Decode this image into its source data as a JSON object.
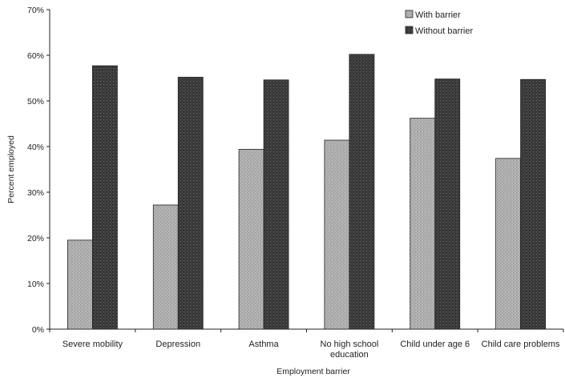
{
  "chart_data": {
    "type": "bar",
    "title": "",
    "xlabel": "Employment barrier",
    "ylabel": "Percent employed",
    "ylim": [
      0,
      70
    ],
    "yticks": [
      "0%",
      "10%",
      "20%",
      "30%",
      "40%",
      "50%",
      "60%",
      "70%"
    ],
    "categories": [
      [
        "Severe mobility"
      ],
      [
        "Depression"
      ],
      [
        "Asthma"
      ],
      [
        "No high school",
        "education"
      ],
      [
        "Child under age 6"
      ],
      [
        "Child care problems"
      ]
    ],
    "series": [
      {
        "name": "With barrier",
        "values": [
          19.5,
          27.2,
          39.4,
          41.4,
          46.2,
          37.4
        ],
        "color": "#a9a9a9",
        "pattern": "speckle-light"
      },
      {
        "name": "Without barrier",
        "values": [
          57.7,
          55.2,
          54.6,
          60.2,
          54.8,
          54.7
        ],
        "color": "#3c3c3c",
        "pattern": "speckle-dark"
      }
    ],
    "legend_position": "top-right",
    "grid": false
  }
}
